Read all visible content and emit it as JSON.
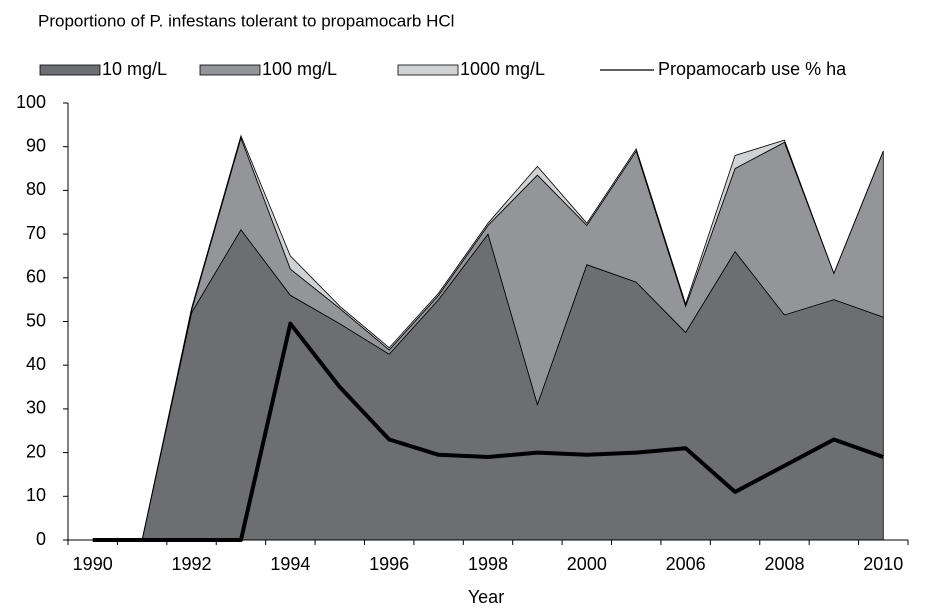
{
  "chart_data": {
    "type": "area",
    "stacked": true,
    "title": "Proportiono of P. infestans tolerant to propamocarb HCl",
    "x_label": "Year",
    "categories": [
      "1990",
      null,
      "1992",
      null,
      "1994",
      null,
      "1996",
      null,
      "1998",
      null,
      "2000",
      null,
      "2006",
      null,
      "2008",
      null,
      "2010"
    ],
    "series": [
      {
        "name": "10 mg/L",
        "color": "#6d6e71",
        "values": [
          0,
          0,
          52,
          71,
          56,
          49.5,
          42.5,
          55,
          70,
          31,
          63,
          59,
          47.5,
          66,
          51.5,
          55,
          51
        ]
      },
      {
        "name": "100 mg/L",
        "color": "#939598",
        "values": [
          0,
          0,
          0.5,
          21,
          6,
          3.5,
          1,
          1,
          2,
          52.5,
          9,
          30,
          6,
          19,
          39.5,
          6,
          38
        ]
      },
      {
        "name": "1000 mg/L",
        "color": "#d1d2d4",
        "values": [
          0,
          0,
          0.5,
          0.5,
          3,
          0.5,
          0.5,
          0.5,
          0.5,
          2,
          0.5,
          0.5,
          0.5,
          3,
          0.5,
          0,
          0
        ]
      },
      {
        "name": "Propamocarb use % ha",
        "type": "line",
        "color": "#000000",
        "values": [
          0,
          0,
          0,
          0,
          49.5,
          35,
          23,
          19.5,
          19,
          20,
          19.5,
          20,
          21,
          11,
          17,
          23,
          19
        ]
      }
    ],
    "ylim": [
      0,
      100
    ],
    "yticks": [
      0,
      10,
      20,
      30,
      40,
      50,
      60,
      70,
      80,
      90,
      100
    ],
    "legend": "top",
    "grid": false
  }
}
